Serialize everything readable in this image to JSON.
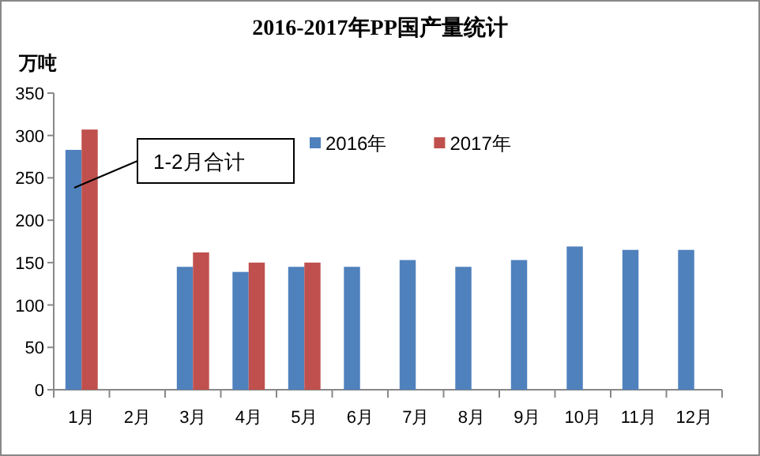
{
  "chart_data": {
    "type": "bar",
    "title": "2016-2017年PP国产量统计",
    "ylabel": "万吨",
    "categories": [
      "1月",
      "2月",
      "3月",
      "4月",
      "5月",
      "6月",
      "7月",
      "8月",
      "9月",
      "10月",
      "11月",
      "12月"
    ],
    "series": [
      {
        "name": "2016年",
        "color": "#4f81bd",
        "values": [
          283,
          null,
          145,
          139,
          145,
          145,
          153,
          145,
          153,
          169,
          165,
          165
        ]
      },
      {
        "name": "2017年",
        "color": "#c0504d",
        "values": [
          307,
          null,
          162,
          150,
          150,
          null,
          null,
          null,
          null,
          null,
          null,
          null
        ]
      }
    ],
    "ylim": [
      0,
      350
    ],
    "yticks": [
      0,
      50,
      100,
      150,
      200,
      250,
      300,
      350
    ],
    "annotations": [
      "1-2月合计"
    ],
    "legend": "top"
  }
}
